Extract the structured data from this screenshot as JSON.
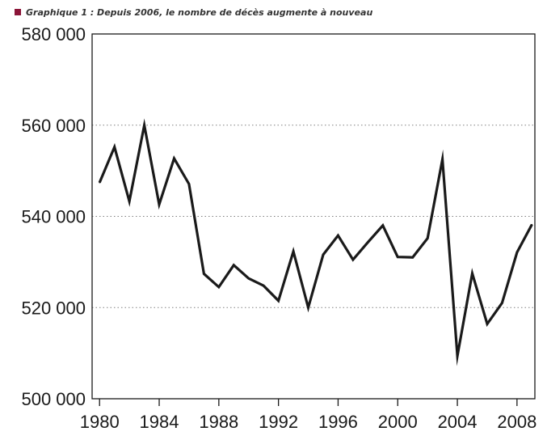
{
  "title": "Graphique 1 : Depuis 2006, le nombre de décès augmente à nouveau",
  "colors": {
    "accent": "#8b1538",
    "line": "#1a1a1a",
    "grid": "#808080"
  },
  "chart_data": {
    "type": "line",
    "title": "Graphique 1 : Depuis 2006, le nombre de décès augmente à nouveau",
    "xlabel": "",
    "ylabel": "",
    "xlim": [
      1979.5,
      2009.2
    ],
    "ylim": [
      500000,
      580000
    ],
    "grid": "horizontal dotted at 520 000, 540 000, 560 000",
    "legend": "none",
    "x_ticks": [
      "1980",
      "1984",
      "1988",
      "1992",
      "1996",
      "2000",
      "2004",
      "2008"
    ],
    "y_ticks": [
      "500 000",
      "520 000",
      "540 000",
      "560 000",
      "580 000"
    ],
    "x": [
      1980,
      1981,
      1982,
      1983,
      1984,
      1985,
      1986,
      1987,
      1988,
      1989,
      1990,
      1991,
      1992,
      1993,
      1994,
      1995,
      1996,
      1997,
      1998,
      1999,
      2000,
      2001,
      2002,
      2003,
      2004,
      2005,
      2006,
      2007,
      2008,
      2009
    ],
    "series": [
      {
        "values": [
          547400,
          555200,
          543300,
          560000,
          542600,
          552700,
          547100,
          527400,
          524500,
          529300,
          526400,
          524800,
          521500,
          532300,
          520000,
          531600,
          535800,
          530500,
          534300,
          538000,
          531100,
          531000,
          535200,
          552500,
          509400,
          527500,
          516400,
          521000,
          532100,
          538200
        ]
      }
    ]
  }
}
